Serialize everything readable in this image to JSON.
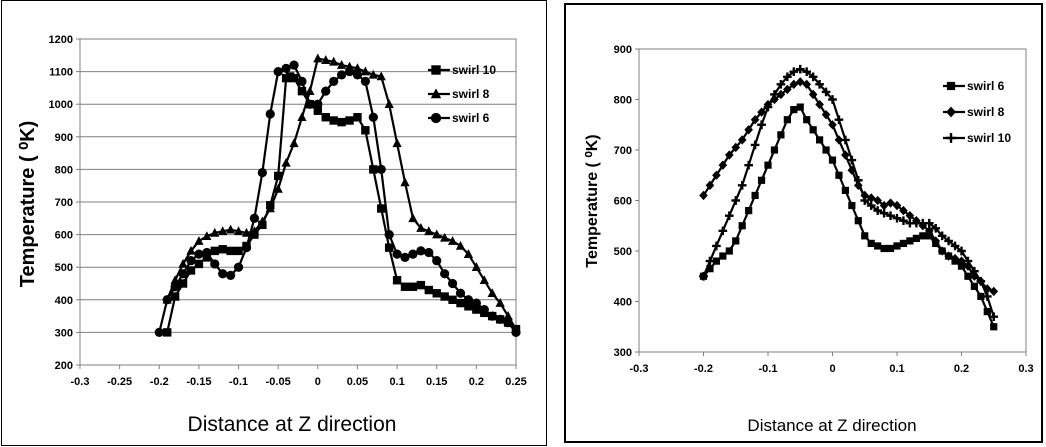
{
  "chart_data": [
    {
      "type": "line",
      "xlabel": "Distance at Z direction",
      "ylabel": "Temperature ( ⁰K)",
      "xlim": [
        -0.3,
        0.25
      ],
      "ylim": [
        200,
        1200
      ],
      "xticks": [
        "-0.3",
        "-0.25",
        "-0.2",
        "-0.15",
        "-0.1",
        "-0.05",
        "0",
        "0.05",
        "0.1",
        "0.15",
        "0.2",
        "0.25"
      ],
      "yticks": [
        "200",
        "300",
        "400",
        "500",
        "600",
        "700",
        "800",
        "900",
        "1000",
        "1100",
        "1200"
      ],
      "grid": "horizontal",
      "legend": "top-right",
      "series": [
        {
          "name": "swirl 10",
          "marker": "square",
          "x": [
            -0.19,
            -0.18,
            -0.17,
            -0.16,
            -0.15,
            -0.14,
            -0.13,
            -0.12,
            -0.11,
            -0.1,
            -0.09,
            -0.08,
            -0.07,
            -0.06,
            -0.05,
            -0.04,
            -0.035,
            -0.03,
            -0.02,
            -0.01,
            0.0,
            0.01,
            0.02,
            0.03,
            0.04,
            0.05,
            0.06,
            0.07,
            0.08,
            0.09,
            0.1,
            0.11,
            0.12,
            0.13,
            0.14,
            0.15,
            0.16,
            0.17,
            0.18,
            0.19,
            0.2,
            0.21,
            0.22,
            0.23,
            0.24,
            0.25
          ],
          "y": [
            300,
            410,
            450,
            490,
            510,
            530,
            550,
            555,
            550,
            550,
            565,
            600,
            630,
            690,
            780,
            1080,
            1085,
            1080,
            1040,
            1000,
            980,
            960,
            950,
            945,
            950,
            960,
            920,
            800,
            680,
            560,
            460,
            440,
            440,
            445,
            430,
            420,
            410,
            400,
            390,
            380,
            370,
            360,
            350,
            340,
            330,
            310
          ]
        },
        {
          "name": "swirl 8",
          "marker": "triangle",
          "x": [
            -0.19,
            -0.18,
            -0.17,
            -0.16,
            -0.15,
            -0.14,
            -0.13,
            -0.12,
            -0.11,
            -0.1,
            -0.09,
            -0.08,
            -0.07,
            -0.06,
            -0.05,
            -0.04,
            -0.03,
            -0.02,
            -0.01,
            0.0,
            0.01,
            0.02,
            0.03,
            0.04,
            0.05,
            0.06,
            0.07,
            0.08,
            0.09,
            0.1,
            0.11,
            0.12,
            0.13,
            0.14,
            0.15,
            0.16,
            0.17,
            0.18,
            0.19,
            0.2,
            0.21,
            0.22,
            0.23,
            0.24,
            0.25
          ],
          "y": [
            400,
            460,
            510,
            550,
            580,
            595,
            605,
            610,
            615,
            610,
            605,
            610,
            640,
            680,
            740,
            820,
            880,
            960,
            1040,
            1140,
            1135,
            1130,
            1120,
            1115,
            1110,
            1100,
            1090,
            1085,
            1000,
            880,
            760,
            650,
            620,
            610,
            600,
            590,
            580,
            565,
            540,
            500,
            460,
            420,
            390,
            350,
            310
          ]
        },
        {
          "name": "swirl 6",
          "marker": "circle",
          "x": [
            -0.2,
            -0.19,
            -0.18,
            -0.17,
            -0.16,
            -0.15,
            -0.14,
            -0.13,
            -0.12,
            -0.11,
            -0.1,
            -0.09,
            -0.08,
            -0.07,
            -0.06,
            -0.05,
            -0.04,
            -0.03,
            -0.02,
            -0.01,
            0.0,
            0.01,
            0.02,
            0.03,
            0.04,
            0.05,
            0.06,
            0.07,
            0.08,
            0.09,
            0.1,
            0.11,
            0.12,
            0.13,
            0.14,
            0.15,
            0.16,
            0.17,
            0.18,
            0.19,
            0.2,
            0.21,
            0.22,
            0.23,
            0.24,
            0.25
          ],
          "y": [
            300,
            400,
            440,
            480,
            520,
            540,
            545,
            510,
            480,
            475,
            500,
            560,
            650,
            790,
            970,
            1100,
            1110,
            1120,
            1070,
            1000,
            1000,
            1040,
            1070,
            1090,
            1100,
            1090,
            1070,
            960,
            800,
            600,
            540,
            530,
            540,
            550,
            545,
            520,
            480,
            450,
            420,
            400,
            390,
            370,
            350,
            340,
            330,
            300
          ]
        }
      ]
    },
    {
      "type": "line",
      "xlabel": "Distance at Z direction",
      "ylabel": "Temperature ( ⁰K)",
      "xlim": [
        -0.3,
        0.3
      ],
      "ylim": [
        300,
        900
      ],
      "xticks": [
        "-0.3",
        "-0.2",
        "-0.1",
        "0",
        "0.1",
        "0.2",
        "0.3"
      ],
      "yticks": [
        "300",
        "400",
        "500",
        "600",
        "700",
        "800",
        "900"
      ],
      "grid": "none",
      "legend": "top-right",
      "series": [
        {
          "name": "swirl 6",
          "marker": "square",
          "x": [
            -0.2,
            -0.19,
            -0.18,
            -0.17,
            -0.16,
            -0.15,
            -0.14,
            -0.13,
            -0.12,
            -0.11,
            -0.1,
            -0.09,
            -0.08,
            -0.07,
            -0.06,
            -0.05,
            -0.04,
            -0.03,
            -0.02,
            -0.01,
            0.0,
            0.01,
            0.02,
            0.03,
            0.04,
            0.05,
            0.06,
            0.07,
            0.08,
            0.09,
            0.1,
            0.11,
            0.12,
            0.13,
            0.14,
            0.15,
            0.16,
            0.17,
            0.18,
            0.19,
            0.2,
            0.21,
            0.22,
            0.23,
            0.24,
            0.25
          ],
          "y": [
            450,
            465,
            480,
            490,
            500,
            520,
            550,
            580,
            610,
            640,
            670,
            700,
            730,
            760,
            780,
            785,
            760,
            740,
            720,
            700,
            680,
            650,
            620,
            590,
            560,
            530,
            515,
            510,
            505,
            505,
            510,
            515,
            520,
            525,
            530,
            530,
            515,
            500,
            490,
            480,
            470,
            450,
            430,
            410,
            380,
            350
          ]
        },
        {
          "name": "swirl 8",
          "marker": "diamond",
          "x": [
            -0.2,
            -0.19,
            -0.18,
            -0.17,
            -0.16,
            -0.15,
            -0.14,
            -0.13,
            -0.12,
            -0.11,
            -0.1,
            -0.09,
            -0.08,
            -0.07,
            -0.06,
            -0.05,
            -0.04,
            -0.03,
            -0.02,
            -0.01,
            0.0,
            0.01,
            0.02,
            0.03,
            0.04,
            0.05,
            0.06,
            0.07,
            0.08,
            0.09,
            0.1,
            0.11,
            0.12,
            0.13,
            0.14,
            0.15,
            0.16,
            0.17,
            0.18,
            0.19,
            0.2,
            0.21,
            0.22,
            0.23,
            0.24,
            0.25
          ],
          "y": [
            610,
            630,
            650,
            670,
            690,
            705,
            720,
            740,
            760,
            775,
            790,
            800,
            810,
            820,
            830,
            835,
            830,
            810,
            790,
            770,
            750,
            720,
            690,
            660,
            630,
            610,
            605,
            600,
            590,
            595,
            590,
            580,
            570,
            560,
            550,
            540,
            520,
            500,
            490,
            485,
            480,
            470,
            450,
            440,
            425,
            420
          ]
        },
        {
          "name": "swirl 10",
          "marker": "plus",
          "x": [
            -0.2,
            -0.19,
            -0.18,
            -0.17,
            -0.16,
            -0.15,
            -0.14,
            -0.13,
            -0.12,
            -0.11,
            -0.1,
            -0.09,
            -0.08,
            -0.07,
            -0.06,
            -0.05,
            -0.04,
            -0.03,
            -0.02,
            -0.01,
            0.0,
            0.01,
            0.02,
            0.03,
            0.04,
            0.05,
            0.06,
            0.07,
            0.08,
            0.09,
            0.1,
            0.11,
            0.12,
            0.13,
            0.14,
            0.15,
            0.16,
            0.17,
            0.18,
            0.19,
            0.2,
            0.21,
            0.22,
            0.23,
            0.24,
            0.25
          ],
          "y": [
            450,
            480,
            510,
            540,
            570,
            600,
            630,
            670,
            710,
            750,
            785,
            810,
            830,
            845,
            855,
            860,
            855,
            845,
            830,
            815,
            800,
            760,
            720,
            680,
            640,
            600,
            590,
            580,
            575,
            570,
            565,
            560,
            555,
            555,
            555,
            555,
            545,
            530,
            520,
            510,
            500,
            480,
            460,
            440,
            410,
            370
          ]
        }
      ]
    }
  ]
}
